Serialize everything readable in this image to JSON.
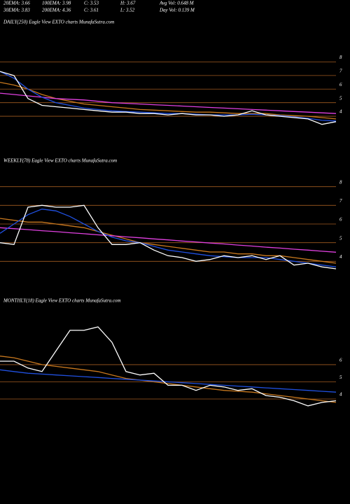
{
  "header": {
    "rows": [
      [
        "20EMA: 3.66",
        "100EMA: 3.98",
        "C: 3.53",
        "H: 3.67",
        "Avg Vol: 0.648 M"
      ],
      [
        "30EMA: 3.83",
        "200EMA: 4.36",
        "C: 3.61",
        "L: 3.52",
        "Day Vol: 0.139 M"
      ]
    ]
  },
  "chart_data": [
    {
      "type": "line",
      "title": "DAILY(250) Eagle  View  EXTO charts MunafaSutra.com",
      "ylim": [
        2.25,
        10.5
      ],
      "yticks": [
        8,
        7,
        6,
        5,
        4
      ],
      "grid": true,
      "series": [
        {
          "color": "#c8781e",
          "values": [
            6.5,
            6.3,
            6.0,
            5.6,
            5.3,
            5.1,
            4.9,
            4.8,
            4.7,
            4.6,
            4.5,
            4.45,
            4.4,
            4.35,
            4.3,
            4.3,
            4.25,
            4.2,
            4.2,
            4.2,
            4.1,
            4.05,
            4.0,
            3.9,
            3.8
          ]
        },
        {
          "color": "#e040e0",
          "values": [
            5.7,
            5.6,
            5.5,
            5.4,
            5.3,
            5.25,
            5.2,
            5.1,
            5.0,
            4.95,
            4.9,
            4.85,
            4.8,
            4.75,
            4.7,
            4.65,
            4.6,
            4.55,
            4.5,
            4.45,
            4.4,
            4.35,
            4.3,
            4.25,
            4.2
          ]
        },
        {
          "color": "#2050e0",
          "values": [
            7.3,
            6.8,
            6.0,
            5.4,
            5.0,
            4.8,
            4.6,
            4.5,
            4.4,
            4.35,
            4.3,
            4.25,
            4.2,
            4.2,
            4.15,
            4.1,
            4.1,
            4.1,
            4.15,
            4.1,
            4.05,
            3.95,
            3.85,
            3.7,
            3.65
          ]
        },
        {
          "color": "#ffffff",
          "values": [
            7.3,
            7.0,
            5.3,
            4.8,
            4.7,
            4.6,
            4.5,
            4.4,
            4.3,
            4.3,
            4.2,
            4.2,
            4.1,
            4.2,
            4.1,
            4.1,
            4.0,
            4.1,
            4.4,
            4.1,
            4.0,
            3.9,
            3.8,
            3.4,
            3.6
          ]
        }
      ]
    },
    {
      "type": "line",
      "title": "WEEKLY(78) Eagle  View  EXTO charts MunafaSutra.com",
      "ylim": [
        3,
        9
      ],
      "yticks": [
        8,
        7,
        6,
        5,
        4
      ],
      "grid": true,
      "series": [
        {
          "color": "#c8781e",
          "values": [
            6.3,
            6.2,
            6.1,
            6.1,
            6.0,
            5.9,
            5.8,
            5.6,
            5.4,
            5.2,
            5.0,
            4.9,
            4.8,
            4.7,
            4.6,
            4.5,
            4.5,
            4.4,
            4.4,
            4.3,
            4.3,
            4.2,
            4.1,
            4.0,
            3.9
          ]
        },
        {
          "color": "#e040e0",
          "values": [
            5.8,
            5.75,
            5.7,
            5.64,
            5.59,
            5.53,
            5.48,
            5.42,
            5.37,
            5.31,
            5.26,
            5.2,
            5.15,
            5.09,
            5.04,
            4.98,
            4.93,
            4.87,
            4.82,
            4.76,
            4.71,
            4.65,
            4.6,
            4.54,
            4.49
          ]
        },
        {
          "color": "#2050e0",
          "values": [
            5.5,
            6.0,
            6.5,
            6.8,
            6.7,
            6.4,
            6.0,
            5.6,
            5.3,
            5.1,
            5.0,
            4.8,
            4.6,
            4.5,
            4.4,
            4.3,
            4.25,
            4.2,
            4.2,
            4.2,
            4.1,
            4.0,
            3.9,
            3.8,
            3.7
          ]
        },
        {
          "color": "#ffffff",
          "values": [
            5.0,
            4.9,
            6.9,
            7.0,
            6.9,
            6.9,
            7.0,
            5.8,
            4.9,
            4.9,
            5.0,
            4.6,
            4.3,
            4.2,
            4.0,
            4.1,
            4.3,
            4.2,
            4.3,
            4.1,
            4.3,
            3.8,
            3.9,
            3.7,
            3.6
          ]
        }
      ]
    },
    {
      "type": "line",
      "title": "MONTHLY(18) Eagle  View  EXTO charts MunafaSutra.com",
      "ylim": [
        -1.3,
        9.3
      ],
      "yticks": [
        6,
        5,
        4
      ],
      "grid": true,
      "series": [
        {
          "color": "#c8781e",
          "values": [
            6.5,
            6.4,
            6.2,
            6.0,
            5.9,
            5.8,
            5.7,
            5.6,
            5.4,
            5.2,
            5.1,
            5.0,
            4.9,
            4.8,
            4.7,
            4.6,
            4.5,
            4.45,
            4.4,
            4.3,
            4.2,
            4.1,
            4.0,
            3.9,
            3.8
          ]
        },
        {
          "color": "#2050e0",
          "values": [
            5.7,
            5.6,
            5.5,
            5.45,
            5.4,
            5.35,
            5.3,
            5.25,
            5.2,
            5.15,
            5.1,
            5.05,
            5.0,
            4.95,
            4.9,
            4.85,
            4.8,
            4.75,
            4.7,
            4.65,
            4.6,
            4.55,
            4.5,
            4.45,
            4.4
          ]
        },
        {
          "color": "#ffffff",
          "values": [
            6.2,
            6.2,
            5.8,
            5.6,
            6.8,
            8.0,
            8.0,
            8.2,
            7.3,
            5.6,
            5.4,
            5.5,
            4.8,
            4.8,
            4.5,
            4.8,
            4.7,
            4.5,
            4.6,
            4.2,
            4.1,
            3.9,
            3.6,
            3.8,
            3.9
          ]
        }
      ]
    }
  ]
}
